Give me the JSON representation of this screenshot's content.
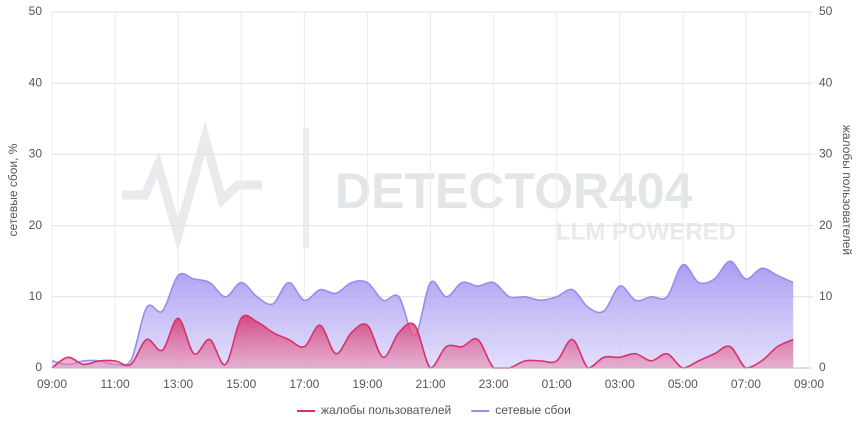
{
  "chart_data": {
    "type": "area",
    "y_label": "сетевые сбои, %",
    "y2_label": "жалобы пользователей",
    "xlim": [
      0,
      24
    ],
    "xticks": [
      {
        "value": 0,
        "label": "09:00"
      },
      {
        "value": 2,
        "label": "11:00"
      },
      {
        "value": 4,
        "label": "13:00"
      },
      {
        "value": 6,
        "label": "15:00"
      },
      {
        "value": 8,
        "label": "17:00"
      },
      {
        "value": 10,
        "label": "19:00"
      },
      {
        "value": 12,
        "label": "21:00"
      },
      {
        "value": 14,
        "label": "23:00"
      },
      {
        "value": 16,
        "label": "01:00"
      },
      {
        "value": 18,
        "label": "03:00"
      },
      {
        "value": 20,
        "label": "05:00"
      },
      {
        "value": 22,
        "label": "07:00"
      },
      {
        "value": 24,
        "label": "09:00"
      }
    ],
    "ylim": [
      0,
      50
    ],
    "yticks": [
      0,
      10,
      20,
      30,
      40,
      50
    ],
    "y2lim": [
      0,
      50
    ],
    "y2ticks": [
      0,
      10,
      20,
      30,
      40,
      50
    ],
    "grid": true,
    "legend": "bottom",
    "x": [
      0,
      0.5,
      1,
      1.5,
      2,
      2.5,
      3,
      3.5,
      4,
      4.5,
      5,
      5.5,
      6,
      6.5,
      7,
      7.5,
      8,
      8.5,
      9,
      9.5,
      10,
      10.5,
      11,
      11.5,
      12,
      12.5,
      13,
      13.5,
      14,
      14.5,
      15,
      15.5,
      16,
      16.5,
      17,
      17.5,
      18,
      18.5,
      19,
      19.5,
      20,
      20.5,
      21,
      21.5,
      22,
      22.5,
      23,
      23.5
    ],
    "series": [
      {
        "name": "сетевые сбои",
        "color": "#9b8cec",
        "axis": "y",
        "values": [
          1,
          0.5,
          1,
          1,
          0.5,
          1,
          8.5,
          8,
          13,
          12.5,
          12,
          10,
          12,
          10,
          9,
          12,
          9.5,
          11,
          10.5,
          12,
          12,
          9.5,
          10,
          4.5,
          12,
          10,
          12,
          11.5,
          12,
          10,
          10,
          9.5,
          10,
          11,
          8.5,
          8,
          11.5,
          9.5,
          10,
          10,
          14.5,
          12,
          12.5,
          15,
          12.5,
          14,
          13,
          12
        ]
      },
      {
        "name": "жалобы пользователей",
        "color": "#d6336c",
        "axis": "y2",
        "values": [
          0,
          1.5,
          0.5,
          1,
          1,
          0.5,
          4,
          2.5,
          7,
          2,
          4,
          0.5,
          7,
          6.5,
          5,
          4,
          3,
          6,
          2,
          5,
          6,
          1.5,
          5,
          6,
          0,
          3,
          3,
          4,
          0,
          0,
          1,
          1,
          1,
          4,
          0,
          1.5,
          1.5,
          2,
          1,
          2,
          0,
          1,
          2,
          3,
          0,
          1,
          3,
          4
        ]
      }
    ]
  },
  "watermark": {
    "title": "DETECTOR404",
    "subtitle": "LLM POWERED"
  }
}
